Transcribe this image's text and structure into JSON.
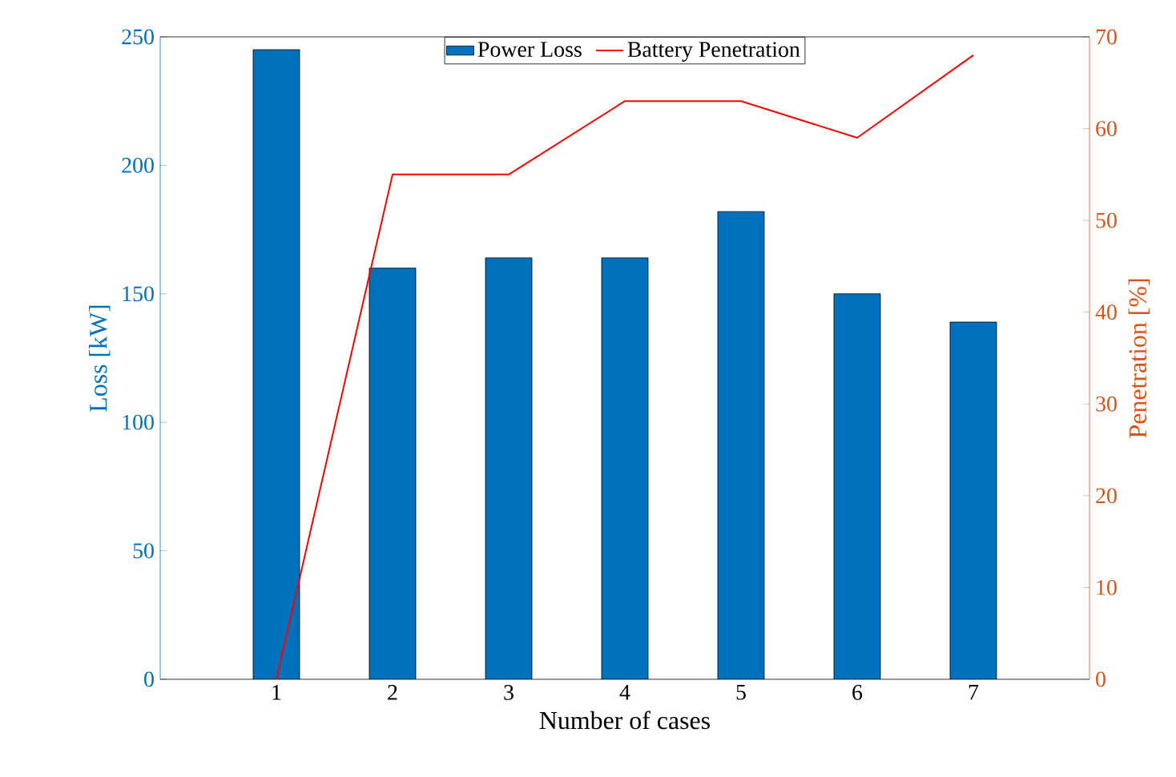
{
  "chart_data": {
    "type": "bar",
    "xlabel": "Number of cases",
    "ylabel": "Loss [kW]",
    "y2label": "Penetration [%]",
    "x": [
      1,
      2,
      3,
      4,
      5,
      6,
      7
    ],
    "xlim": [
      0,
      8
    ],
    "xticks": [
      1,
      2,
      3,
      4,
      5,
      6,
      7
    ],
    "ylim": [
      0,
      250
    ],
    "yticks": [
      0,
      50,
      100,
      150,
      200,
      250
    ],
    "y2lim": [
      0,
      70
    ],
    "y2ticks": [
      0,
      10,
      20,
      30,
      40,
      50,
      60,
      70
    ],
    "series": [
      {
        "name": "Power Loss",
        "color": "#0072bd",
        "values": [
          245,
          160,
          164,
          164,
          182,
          150,
          139
        ]
      },
      {
        "name": "Battery Penetration",
        "type": "line",
        "axis": "y2",
        "color": "#ff0000",
        "values": [
          0,
          55,
          55,
          63,
          63,
          59,
          68
        ]
      }
    ],
    "legend": "top",
    "grid": false
  }
}
